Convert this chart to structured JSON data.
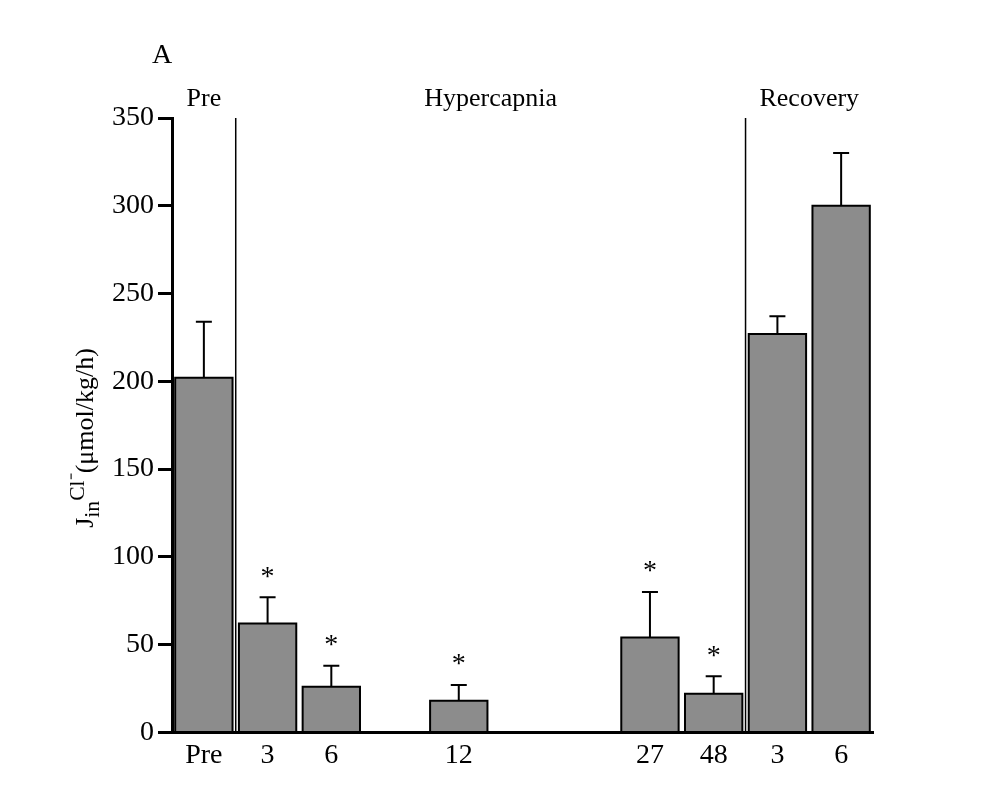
{
  "chart_data": {
    "type": "bar",
    "ylabel": "J$_{in}$$^{Cl⁻}$(μmol/kg/h)",
    "categories": [
      "Pre",
      "3",
      "6",
      null,
      "12",
      null,
      null,
      "27",
      "48",
      "3",
      "6"
    ],
    "values": [
      202,
      62,
      26,
      null,
      18,
      null,
      null,
      54,
      22,
      227,
      300
    ],
    "errors": [
      [
        202,
        234
      ],
      [
        62,
        77
      ],
      [
        26,
        38
      ],
      null,
      [
        18,
        27
      ],
      null,
      null,
      [
        54,
        80
      ],
      [
        22,
        32
      ],
      [
        227,
        237
      ],
      [
        300,
        330
      ]
    ],
    "value_labels": [
      null,
      "*",
      "*",
      null,
      "*",
      null,
      null,
      "*",
      "*",
      null,
      null
    ],
    "color": "#8c8c8c",
    "ylim": [
      0,
      350
    ],
    "yticks": [
      0,
      50,
      100,
      150,
      200,
      250,
      300,
      350
    ],
    "annotations": [
      "A",
      "Pre",
      "Hypercapnia",
      "Recovery"
    ],
    "grid": false,
    "legend": false
  }
}
